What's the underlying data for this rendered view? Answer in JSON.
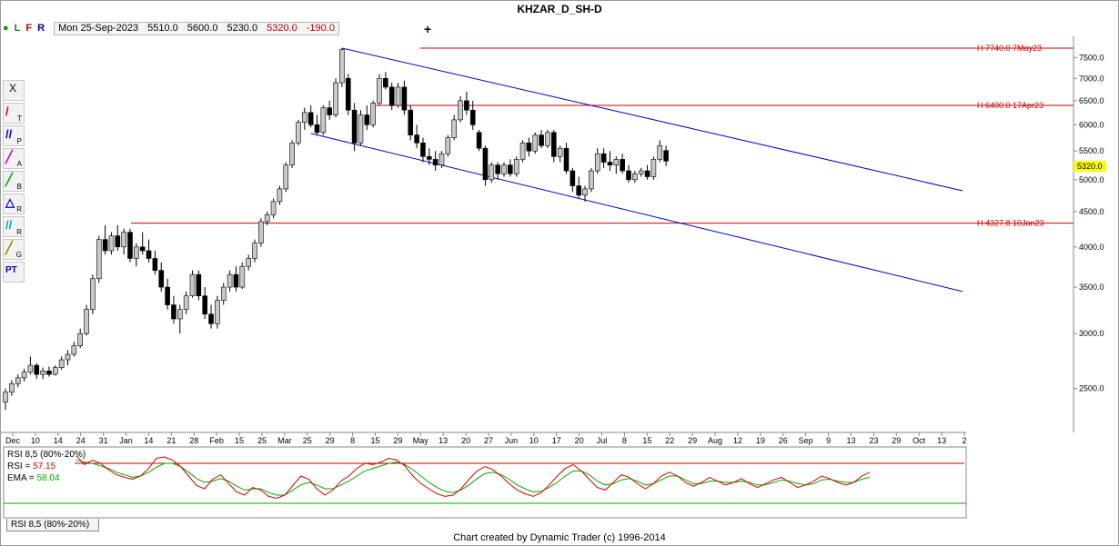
{
  "title": "KHZAR_D_SH-D",
  "header": {
    "flags": {
      "dot": "●",
      "l": "L",
      "f": "F",
      "r": "R"
    },
    "quote": {
      "date": "Mon 25-Sep-2023",
      "open": "5510.0",
      "high": "5600.0",
      "low": "5230.0",
      "close": "5320.0",
      "change": "-190.0"
    },
    "add_label": "+"
  },
  "toolbar": {
    "items": [
      {
        "name": "close",
        "glyph": "X",
        "sub": ""
      },
      {
        "name": "trendline",
        "glyph": "/",
        "sub": "T"
      },
      {
        "name": "parallel",
        "glyph": "//",
        "sub": "P"
      },
      {
        "name": "abc",
        "glyph": "╱",
        "sub": "A"
      },
      {
        "name": "b-tool",
        "glyph": "╱",
        "sub": "B"
      },
      {
        "name": "r-tool",
        "glyph": "△",
        "sub": "R"
      },
      {
        "name": "r2-tool",
        "glyph": "//",
        "sub": "R"
      },
      {
        "name": "g-tool",
        "glyph": "╱",
        "sub": "G"
      },
      {
        "name": "pt-tool",
        "glyph": "PT",
        "sub": ""
      }
    ]
  },
  "colors": {
    "up": "#c8c8c8",
    "down": "#000000",
    "channel": "#0000cc",
    "hline": "#cc0000",
    "rsi": "#dd0000",
    "ema": "#00aa00",
    "price_tag": "#ffff00",
    "highlight": "#cc00cc"
  },
  "chart_data": {
    "type": "candlestick",
    "price_axis": {
      "scale": "log",
      "range": [
        2200,
        8000
      ],
      "ticks": [
        "7500.0",
        "7000.0",
        "6500.0",
        "6000.0",
        "5500.0",
        "5000.0",
        "4500.0",
        "4000.0",
        "3500.0",
        "3000.0",
        "2500.0"
      ]
    },
    "x_ticks": [
      "Dec",
      "10",
      "14",
      "24",
      "31",
      "Jan",
      "14",
      "21",
      "28",
      "Feb",
      "15",
      "25",
      "Mar",
      "25",
      "29",
      "8",
      "15",
      "29",
      "May",
      "13",
      "20",
      "27",
      "Jun",
      "10",
      "17",
      "20",
      "Jul",
      "8",
      "15",
      "22",
      "29",
      "Aug",
      "12",
      "19",
      "26",
      "Sep",
      "9",
      "13",
      "23",
      "29",
      "Oct",
      "13",
      "2"
    ],
    "current_price": "5320.0",
    "series": [
      {
        "name": "KHZAR_D_SH-D",
        "bars": [
          [
            2390,
            2500,
            2330,
            2470
          ],
          [
            2470,
            2570,
            2440,
            2540
          ],
          [
            2540,
            2620,
            2510,
            2590
          ],
          [
            2590,
            2670,
            2560,
            2640
          ],
          [
            2640,
            2780,
            2620,
            2700
          ],
          [
            2700,
            2720,
            2580,
            2620
          ],
          [
            2620,
            2680,
            2580,
            2650
          ],
          [
            2650,
            2690,
            2600,
            2620
          ],
          [
            2620,
            2700,
            2610,
            2680
          ],
          [
            2680,
            2780,
            2660,
            2750
          ],
          [
            2750,
            2840,
            2700,
            2800
          ],
          [
            2800,
            2920,
            2780,
            2880
          ],
          [
            2880,
            3050,
            2860,
            3000
          ],
          [
            3000,
            3300,
            2980,
            3250
          ],
          [
            3250,
            3650,
            3200,
            3600
          ],
          [
            3600,
            4150,
            3550,
            4100
          ],
          [
            4100,
            4300,
            3900,
            3950
          ],
          [
            3950,
            4200,
            3900,
            4150
          ],
          [
            4150,
            4300,
            3950,
            4000
          ],
          [
            4000,
            4250,
            3900,
            4200
          ],
          [
            4200,
            4250,
            3800,
            3850
          ],
          [
            3850,
            4050,
            3750,
            4000
          ],
          [
            4000,
            4200,
            3900,
            3950
          ],
          [
            3950,
            4100,
            3800,
            3850
          ],
          [
            3850,
            3950,
            3650,
            3700
          ],
          [
            3700,
            3800,
            3450,
            3500
          ],
          [
            3500,
            3600,
            3250,
            3300
          ],
          [
            3300,
            3400,
            3100,
            3150
          ],
          [
            3150,
            3300,
            3000,
            3250
          ],
          [
            3250,
            3450,
            3200,
            3400
          ],
          [
            3400,
            3700,
            3380,
            3650
          ],
          [
            3650,
            3700,
            3350,
            3400
          ],
          [
            3400,
            3500,
            3150,
            3200
          ],
          [
            3200,
            3300,
            3050,
            3100
          ],
          [
            3100,
            3400,
            3050,
            3350
          ],
          [
            3350,
            3550,
            3300,
            3500
          ],
          [
            3500,
            3700,
            3450,
            3650
          ],
          [
            3650,
            3750,
            3450,
            3500
          ],
          [
            3500,
            3800,
            3480,
            3750
          ],
          [
            3750,
            3900,
            3700,
            3850
          ],
          [
            3850,
            4100,
            3800,
            4050
          ],
          [
            4050,
            4400,
            4000,
            4350
          ],
          [
            4350,
            4500,
            4300,
            4450
          ],
          [
            4450,
            4700,
            4400,
            4650
          ],
          [
            4650,
            4900,
            4600,
            4850
          ],
          [
            4850,
            5300,
            4800,
            5250
          ],
          [
            5250,
            5700,
            5200,
            5650
          ],
          [
            5650,
            6100,
            5600,
            6050
          ],
          [
            6050,
            6350,
            5900,
            6250
          ],
          [
            6250,
            6400,
            5950,
            6000
          ],
          [
            6000,
            6200,
            5800,
            5850
          ],
          [
            5850,
            6400,
            5800,
            6350
          ],
          [
            6350,
            6500,
            6100,
            6200
          ],
          [
            6200,
            7000,
            6150,
            6900
          ],
          [
            6900,
            7740,
            6800,
            7700
          ],
          [
            7000,
            7100,
            6200,
            6300
          ],
          [
            6300,
            6450,
            5500,
            5650
          ],
          [
            5650,
            6300,
            5600,
            6200
          ],
          [
            6200,
            6400,
            5900,
            6000
          ],
          [
            6000,
            6500,
            5950,
            6450
          ],
          [
            6450,
            7100,
            6400,
            7000
          ],
          [
            7000,
            7150,
            6750,
            6800
          ],
          [
            6800,
            6900,
            6300,
            6400
          ],
          [
            6400,
            6900,
            6350,
            6800
          ],
          [
            6800,
            6950,
            6200,
            6300
          ],
          [
            6300,
            6400,
            5700,
            5800
          ],
          [
            5800,
            6000,
            5550,
            5650
          ],
          [
            5650,
            5750,
            5300,
            5400
          ],
          [
            5400,
            5550,
            5250,
            5350
          ],
          [
            5350,
            5500,
            5150,
            5250
          ],
          [
            5250,
            5500,
            5200,
            5450
          ],
          [
            5450,
            5800,
            5400,
            5750
          ],
          [
            5750,
            6200,
            5700,
            6100
          ],
          [
            6100,
            6600,
            6050,
            6500
          ],
          [
            6500,
            6700,
            6200,
            6300
          ],
          [
            6300,
            6500,
            5900,
            6000
          ],
          [
            5850,
            5900,
            5500,
            5550
          ],
          [
            5550,
            5600,
            4900,
            5000
          ],
          [
            5000,
            5300,
            4950,
            5250
          ],
          [
            5250,
            5300,
            5000,
            5100
          ],
          [
            5100,
            5300,
            5050,
            5250
          ],
          [
            5250,
            5350,
            5050,
            5100
          ],
          [
            5100,
            5400,
            5050,
            5350
          ],
          [
            5350,
            5700,
            5300,
            5650
          ],
          [
            5650,
            5750,
            5400,
            5500
          ],
          [
            5500,
            5850,
            5450,
            5800
          ],
          [
            5800,
            5900,
            5550,
            5600
          ],
          [
            5600,
            5900,
            5550,
            5850
          ],
          [
            5850,
            5900,
            5300,
            5400
          ],
          [
            5400,
            5600,
            5300,
            5550
          ],
          [
            5550,
            5650,
            5100,
            5150
          ],
          [
            5150,
            5200,
            4800,
            4900
          ],
          [
            4900,
            5050,
            4700,
            4750
          ],
          [
            4750,
            4900,
            4650,
            4850
          ],
          [
            4850,
            5200,
            4800,
            5150
          ],
          [
            5150,
            5550,
            5100,
            5450
          ],
          [
            5450,
            5550,
            5200,
            5300
          ],
          [
            5300,
            5500,
            5150,
            5250
          ],
          [
            5250,
            5400,
            5100,
            5350
          ],
          [
            5350,
            5450,
            5100,
            5150
          ],
          [
            5150,
            5250,
            4950,
            5000
          ],
          [
            5000,
            5150,
            4950,
            5100
          ],
          [
            5100,
            5200,
            5050,
            5150
          ],
          [
            5150,
            5250,
            5000,
            5050
          ],
          [
            5050,
            5400,
            5000,
            5350
          ],
          [
            5350,
            5700,
            5300,
            5600
          ],
          [
            5510,
            5600,
            5230,
            5320
          ]
        ]
      }
    ],
    "channel": [
      {
        "from": {
          "bar": 54,
          "price": 7740
        },
        "to": {
          "bar": 120,
          "price": 4820
        }
      },
      {
        "from": {
          "bar": 49,
          "price": 5830
        },
        "to": {
          "bar": 120,
          "price": 3450
        }
      }
    ],
    "hlines": [
      {
        "price": 7740,
        "label": "H 7740.0 7May23"
      },
      {
        "price": 6400,
        "label": "H 6400.0 17Apr23"
      },
      {
        "price": 4327.8,
        "label": "H 4327.8 10Jan23"
      }
    ],
    "rsi_panel": {
      "title": "RSI 8,5 (80%-20%)",
      "rsi_label": "RSI = ",
      "rsi_value": "57.15",
      "ema_label": "EMA = ",
      "ema_value": "58.04",
      "upper": 80,
      "lower": 20,
      "rsi": [
        92,
        78,
        85,
        80,
        70,
        62,
        58,
        55,
        60,
        72,
        88,
        90,
        85,
        75,
        60,
        45,
        40,
        55,
        62,
        48,
        35,
        30,
        42,
        38,
        28,
        25,
        30,
        45,
        60,
        55,
        40,
        30,
        38,
        52,
        60,
        72,
        80,
        78,
        82,
        88,
        85,
        76,
        60,
        48,
        40,
        32,
        28,
        30,
        40,
        55,
        68,
        75,
        70,
        60,
        48,
        38,
        32,
        28,
        34,
        46,
        60,
        72,
        78,
        68,
        55,
        42,
        38,
        50,
        62,
        58,
        48,
        40,
        48,
        60,
        66,
        60,
        50,
        44,
        50,
        58,
        52,
        46,
        50,
        56,
        48,
        42,
        48,
        54,
        58,
        50,
        42,
        46,
        52,
        60,
        56,
        50,
        46,
        50,
        60,
        66
      ],
      "ema": [
        85,
        82,
        80,
        76,
        72,
        66,
        62,
        58,
        60,
        66,
        74,
        80,
        80,
        75,
        66,
        56,
        50,
        52,
        56,
        52,
        44,
        38,
        40,
        40,
        34,
        30,
        30,
        38,
        46,
        50,
        46,
        40,
        40,
        46,
        52,
        60,
        68,
        72,
        76,
        80,
        82,
        78,
        70,
        60,
        50,
        42,
        36,
        34,
        38,
        46,
        56,
        64,
        66,
        62,
        55,
        46,
        40,
        35,
        36,
        42,
        50,
        60,
        68,
        68,
        62,
        52,
        46,
        48,
        54,
        56,
        52,
        46,
        48,
        54,
        60,
        60,
        54,
        48,
        48,
        52,
        52,
        50,
        50,
        52,
        50,
        46,
        46,
        50,
        54,
        52,
        48,
        46,
        48,
        54,
        55,
        52,
        50,
        50,
        55,
        58
      ]
    }
  },
  "footer": "Chart created by Dynamic Trader  (c) 1996-2014",
  "rsi_tab": "RSI 8,5 (80%-20%)"
}
